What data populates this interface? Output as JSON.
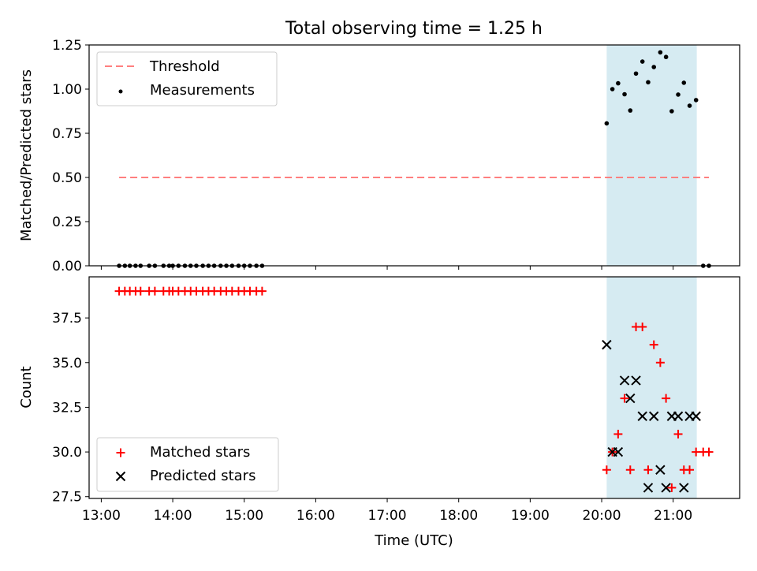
{
  "title": "Total observing time = 1.25 h",
  "colors": {
    "threshold": "#ff7f7f",
    "measurement": "#000000",
    "matched": "#ff0000",
    "predicted": "#000000",
    "observing_span": "#add8e6"
  },
  "chart_data": [
    {
      "type": "scatter",
      "panel": "top",
      "title": "Total observing time = 1.25 h",
      "xlabel": "",
      "ylabel": "Matched/Predicted stars",
      "xlim": [
        12.83,
        21.93
      ],
      "ylim": [
        0.0,
        1.25
      ],
      "yticks": [
        0.0,
        0.25,
        0.5,
        0.75,
        1.0,
        1.25
      ],
      "ytick_labels": [
        "0.00",
        "0.25",
        "0.50",
        "0.75",
        "1.00",
        "1.25"
      ],
      "grid": false,
      "legend": "upper-left",
      "observing_span": [
        20.07,
        21.33
      ],
      "threshold": {
        "name": "Threshold",
        "y": 0.5,
        "x_range": [
          13.25,
          21.5
        ]
      },
      "series": [
        {
          "name": "Measurements",
          "x": [
            13.25,
            13.33,
            13.4,
            13.48,
            13.55,
            13.67,
            13.75,
            13.87,
            13.95,
            14.0,
            14.08,
            14.17,
            14.25,
            14.33,
            14.42,
            14.5,
            14.58,
            14.67,
            14.75,
            14.83,
            14.92,
            15.0,
            15.08,
            15.17,
            15.25,
            20.07,
            20.15,
            20.23,
            20.32,
            20.4,
            20.48,
            20.57,
            20.65,
            20.73,
            20.82,
            20.9,
            20.98,
            21.07,
            21.15,
            21.23,
            21.32,
            21.42,
            21.5
          ],
          "y": [
            0,
            0,
            0,
            0,
            0,
            0,
            0,
            0,
            0,
            0,
            0,
            0,
            0,
            0,
            0,
            0,
            0,
            0,
            0,
            0,
            0,
            0,
            0,
            0,
            0,
            0.806,
            1.0,
            1.033,
            0.971,
            0.879,
            1.088,
            1.156,
            1.039,
            1.125,
            1.208,
            1.182,
            0.875,
            0.969,
            1.036,
            0.906,
            0.938,
            0,
            0
          ]
        }
      ]
    },
    {
      "type": "scatter",
      "panel": "bottom",
      "xlabel": "Time (UTC)",
      "ylabel": "Count",
      "xlim": [
        12.83,
        21.93
      ],
      "ylim": [
        27.4,
        39.8
      ],
      "xticks": [
        13,
        14,
        15,
        16,
        17,
        18,
        19,
        20,
        21
      ],
      "xtick_labels": [
        "13:00",
        "14:00",
        "15:00",
        "16:00",
        "17:00",
        "18:00",
        "19:00",
        "20:00",
        "21:00"
      ],
      "yticks": [
        27.5,
        30.0,
        32.5,
        35.0,
        37.5
      ],
      "ytick_labels": [
        "27.5",
        "30.0",
        "32.5",
        "35.0",
        "37.5"
      ],
      "grid": false,
      "legend": "lower-left",
      "observing_span": [
        20.07,
        21.33
      ],
      "series": [
        {
          "name": "Matched stars",
          "marker": "plus",
          "x": [
            13.25,
            13.33,
            13.4,
            13.48,
            13.55,
            13.67,
            13.75,
            13.87,
            13.95,
            14.0,
            14.08,
            14.17,
            14.25,
            14.33,
            14.42,
            14.5,
            14.58,
            14.67,
            14.75,
            14.83,
            14.92,
            15.0,
            15.08,
            15.17,
            15.25,
            20.07,
            20.15,
            20.23,
            20.32,
            20.4,
            20.48,
            20.57,
            20.65,
            20.73,
            20.82,
            20.9,
            20.98,
            21.07,
            21.15,
            21.23,
            21.32,
            21.42,
            21.5
          ],
          "y": [
            39,
            39,
            39,
            39,
            39,
            39,
            39,
            39,
            39,
            39,
            39,
            39,
            39,
            39,
            39,
            39,
            39,
            39,
            39,
            39,
            39,
            39,
            39,
            39,
            39,
            29,
            30,
            31,
            33,
            29,
            37,
            37,
            29,
            36,
            35,
            33,
            28,
            31,
            29,
            29,
            30,
            30,
            30
          ]
        },
        {
          "name": "Predicted stars",
          "marker": "x",
          "x": [
            20.07,
            20.15,
            20.23,
            20.32,
            20.4,
            20.48,
            20.57,
            20.65,
            20.73,
            20.82,
            20.9,
            20.98,
            21.07,
            21.15,
            21.23,
            21.32
          ],
          "y": [
            36,
            30,
            30,
            34,
            33,
            34,
            32,
            28,
            32,
            29,
            28,
            32,
            32,
            28,
            32,
            32
          ]
        }
      ]
    }
  ]
}
